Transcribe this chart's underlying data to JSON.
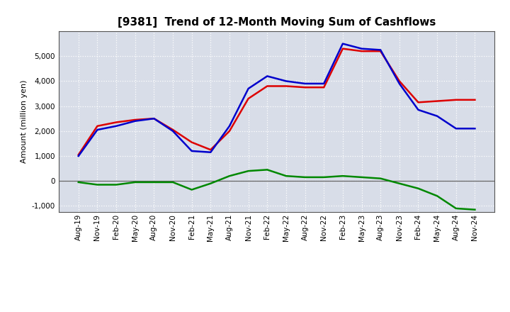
{
  "title": "[9381]  Trend of 12-Month Moving Sum of Cashflows",
  "ylabel": "Amount (million yen)",
  "x_labels": [
    "Aug-19",
    "Nov-19",
    "Feb-20",
    "May-20",
    "Aug-20",
    "Nov-20",
    "Feb-21",
    "May-21",
    "Aug-21",
    "Nov-21",
    "Feb-22",
    "May-22",
    "Aug-22",
    "Nov-22",
    "Feb-23",
    "May-23",
    "Aug-23",
    "Nov-23",
    "Feb-24",
    "May-24",
    "Aug-24",
    "Nov-24"
  ],
  "operating": [
    1050,
    2200,
    2350,
    2450,
    2500,
    2050,
    1550,
    1250,
    2000,
    3300,
    3800,
    3800,
    3750,
    3750,
    5300,
    5200,
    5200,
    4000,
    3150,
    3200,
    3250,
    3250
  ],
  "investing": [
    -50,
    -150,
    -150,
    -50,
    -50,
    -50,
    -350,
    -100,
    200,
    400,
    450,
    200,
    150,
    150,
    200,
    150,
    100,
    -100,
    -300,
    -600,
    -1100,
    -1150
  ],
  "free": [
    1000,
    2050,
    2200,
    2400,
    2500,
    2000,
    1200,
    1150,
    2200,
    3700,
    4200,
    4000,
    3900,
    3900,
    5500,
    5300,
    5250,
    3900,
    2850,
    2600,
    2100,
    2100
  ],
  "operating_color": "#dd0000",
  "investing_color": "#008800",
  "free_color": "#0000cc",
  "ylim": [
    -1250,
    6000
  ],
  "yticks": [
    -1000,
    0,
    1000,
    2000,
    3000,
    4000,
    5000
  ],
  "bg_color": "#ffffff",
  "plot_bg_color": "#d8dde8",
  "grid_color": "#ffffff",
  "linewidth": 1.8,
  "title_fontsize": 11,
  "label_fontsize": 8,
  "tick_fontsize": 7.5,
  "legend_fontsize": 9
}
